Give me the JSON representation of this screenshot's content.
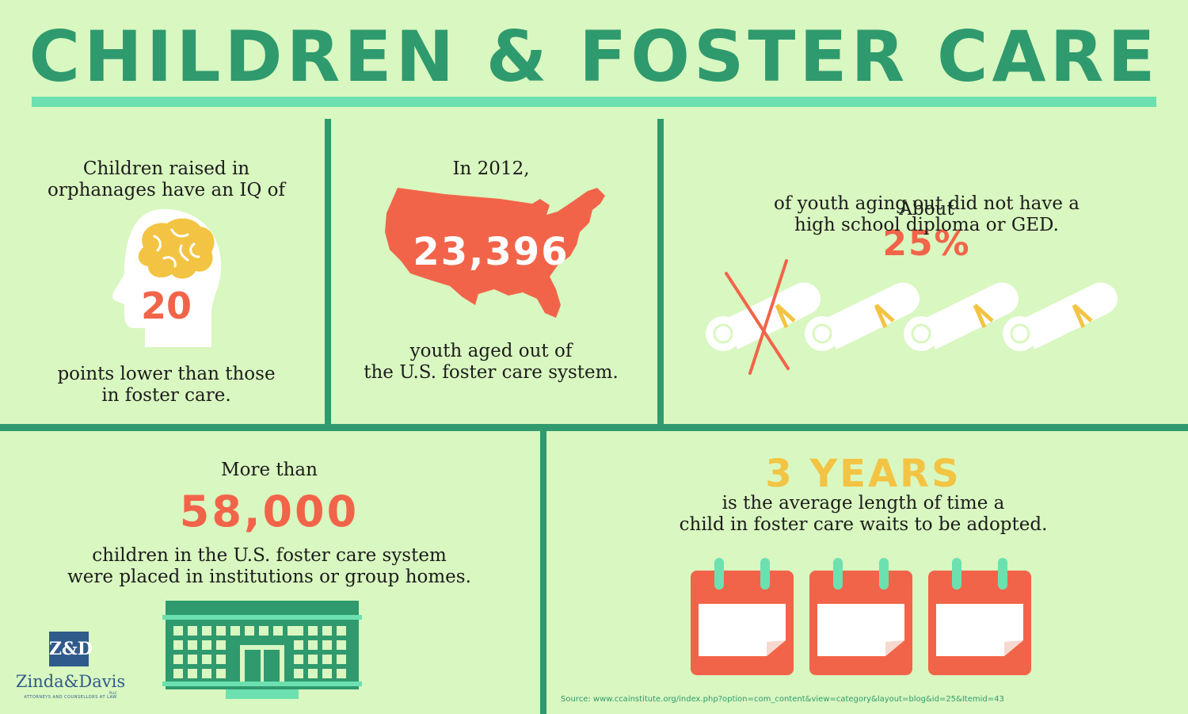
{
  "title": "CHILDREN & FOSTER CARE",
  "colors": {
    "background": "#d9f7c0",
    "green": "#2f9a6e",
    "mint": "#6de0b0",
    "coral": "#f26449",
    "yellow": "#f3c443",
    "logo_blue": "#2f5b8a"
  },
  "panel_iq": {
    "text_top": "Children raised in\norphanages have an IQ of",
    "number": "20",
    "text_bottom": "points lower than those\nin foster care.",
    "icon": "head-brain-icon"
  },
  "panel_aged_out": {
    "text_top": "In 2012,",
    "number": "23,396",
    "text_bottom": "youth aged out of\nthe U.S. foster care system.",
    "icon": "usa-map-icon"
  },
  "panel_diploma": {
    "prefix": "About",
    "percent": "25%",
    "text": "of youth aging out did not have a\nhigh school diploma or GED.",
    "icon": "diploma-scroll-icon"
  },
  "panel_institutions": {
    "text_top": "More than",
    "number": "58,000",
    "text_bottom": "children in the U.S. foster care system\nwere placed in institutions or group homes.",
    "icon": "building-icon"
  },
  "panel_adoption": {
    "headline": "3 YEARS",
    "text": "is the average length of time a\nchild in foster care waits to be adopted.",
    "icon": "calendar-icon"
  },
  "logo": {
    "mark": "Z&D",
    "name": "Zinda&Davis",
    "small": "PLLC",
    "subtitle": "ATTORNEYS AND COUNSELLORS AT LAW"
  },
  "source": "Source: www.ccainstitute.org/index.php?option=com_content&view=category&layout=blog&id=25&Itemid=43"
}
